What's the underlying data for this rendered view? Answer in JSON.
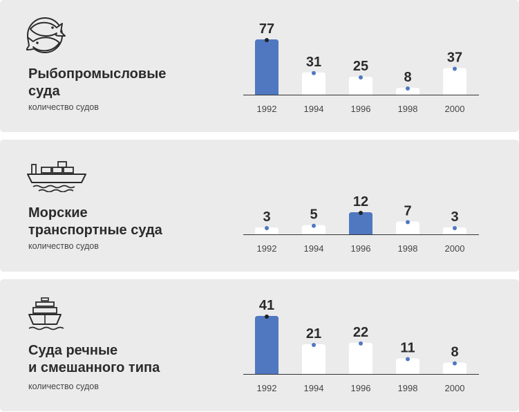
{
  "colors": {
    "highlight": "#4f78c1",
    "bar": "#ffffff",
    "dot_highlight": "#222222",
    "dot": "#4f78c1",
    "panel": "#ebebeb"
  },
  "panels": [
    {
      "icon": "fish-icon",
      "title": "Рыбопромысловые\nсуда",
      "subtitle": "количество судов"
    },
    {
      "icon": "cargo-ship-icon",
      "title": "Морские\nтранспортные суда",
      "subtitle": "количество судов"
    },
    {
      "icon": "river-ship-icon",
      "title": "Суда речные\nи смешанного типа",
      "subtitle": "количество судов"
    }
  ],
  "chart_data": [
    {
      "type": "bar",
      "categories": [
        "1992",
        "1994",
        "1996",
        "1998",
        "2000"
      ],
      "values": [
        77,
        31,
        25,
        8,
        37
      ],
      "highlight_index": 0,
      "ylim": [
        0,
        77
      ]
    },
    {
      "type": "bar",
      "categories": [
        "1992",
        "1994",
        "1996",
        "1998",
        "2000"
      ],
      "values": [
        3,
        5,
        12,
        7,
        3
      ],
      "highlight_index": 2,
      "ylim": [
        0,
        12
      ]
    },
    {
      "type": "bar",
      "categories": [
        "1992",
        "1994",
        "1996",
        "1998",
        "2000"
      ],
      "values": [
        41,
        21,
        22,
        11,
        8
      ],
      "highlight_index": 0,
      "ylim": [
        0,
        41
      ]
    }
  ]
}
